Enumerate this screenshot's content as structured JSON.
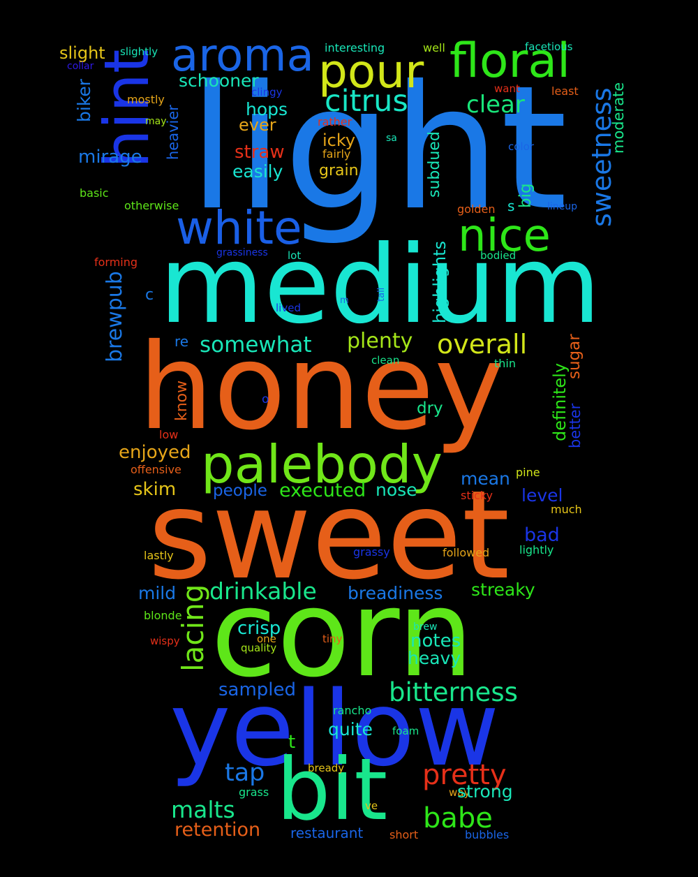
{
  "words": [
    {
      "text": "light",
      "color": "#1a78e6",
      "vertical": false
    },
    {
      "text": "medium",
      "color": "#19e6d2",
      "vertical": false
    },
    {
      "text": "honey",
      "color": "#e65f19",
      "vertical": false
    },
    {
      "text": "sweet",
      "color": "#e65f19",
      "vertical": false
    },
    {
      "text": "corn",
      "color": "#5ee619",
      "vertical": false
    },
    {
      "text": "yellow",
      "color": "#1a35e6",
      "vertical": false
    },
    {
      "text": "bit",
      "color": "#19e68c",
      "vertical": false
    },
    {
      "text": "palebody",
      "color": "#70e619",
      "vertical": false
    },
    {
      "text": "hint",
      "color": "#1a35e6",
      "vertical": true
    },
    {
      "text": "aroma",
      "color": "#1a65e6",
      "vertical": false
    },
    {
      "text": "pour",
      "color": "#d2e619",
      "vertical": false
    },
    {
      "text": "floral",
      "color": "#2ee619",
      "vertical": false
    },
    {
      "text": "white",
      "color": "#1a5fe6",
      "vertical": false
    },
    {
      "text": "nice",
      "color": "#2ee619",
      "vertical": false
    },
    {
      "text": "citrus",
      "color": "#19e6c5",
      "vertical": false
    },
    {
      "text": "clear",
      "color": "#19e67a",
      "vertical": false
    },
    {
      "text": "sweetness",
      "color": "#1a78e6",
      "vertical": true
    },
    {
      "text": "moderate",
      "color": "#19e68c",
      "vertical": true
    },
    {
      "text": "slight",
      "color": "#e6c519",
      "vertical": false
    },
    {
      "text": "slightly",
      "color": "#19e6b8",
      "vertical": false
    },
    {
      "text": "collar",
      "color": "#2e19e6",
      "vertical": false
    },
    {
      "text": "interesting",
      "color": "#19e6b8",
      "vertical": false
    },
    {
      "text": "well",
      "color": "#a5e619",
      "vertical": false
    },
    {
      "text": "facetious",
      "color": "#19e6b8",
      "vertical": false
    },
    {
      "text": "schooner",
      "color": "#19e6b8",
      "vertical": false
    },
    {
      "text": "clingy",
      "color": "#1a35e6",
      "vertical": false
    },
    {
      "text": "want",
      "color": "#e63019",
      "vertical": false
    },
    {
      "text": "least",
      "color": "#e65f19",
      "vertical": false
    },
    {
      "text": "biker",
      "color": "#1a78e6",
      "vertical": true
    },
    {
      "text": "mostly",
      "color": "#e6a519",
      "vertical": false
    },
    {
      "text": "heavier",
      "color": "#1a65e6",
      "vertical": true
    },
    {
      "text": "hops",
      "color": "#19e6d2",
      "vertical": false
    },
    {
      "text": "ever",
      "color": "#e6a519",
      "vertical": false
    },
    {
      "text": "rather",
      "color": "#e63019",
      "vertical": false
    },
    {
      "text": "may",
      "color": "#a5e619",
      "vertical": false
    },
    {
      "text": "icky",
      "color": "#e6a519",
      "vertical": false
    },
    {
      "text": "sa",
      "color": "#19e6b8",
      "vertical": false
    },
    {
      "text": "color",
      "color": "#1a65e6",
      "vertical": false
    },
    {
      "text": "mirage",
      "color": "#1a78e6",
      "vertical": false
    },
    {
      "text": "straw",
      "color": "#e63019",
      "vertical": false
    },
    {
      "text": "fairly",
      "color": "#e6a519",
      "vertical": false
    },
    {
      "text": "subdued",
      "color": "#19e6b8",
      "vertical": true
    },
    {
      "text": "easily",
      "color": "#19e6d2",
      "vertical": false
    },
    {
      "text": "grain",
      "color": "#e6c519",
      "vertical": false
    },
    {
      "text": "basic",
      "color": "#5ee619",
      "vertical": false
    },
    {
      "text": "otherwise",
      "color": "#5ee619",
      "vertical": false
    },
    {
      "text": "big",
      "color": "#19e68c",
      "vertical": true
    },
    {
      "text": "golden",
      "color": "#e65f19",
      "vertical": false
    },
    {
      "text": "s",
      "color": "#19e6d2",
      "vertical": false
    },
    {
      "text": "lineup",
      "color": "#1a65e6",
      "vertical": false
    },
    {
      "text": "grassiness",
      "color": "#1a35e6",
      "vertical": false
    },
    {
      "text": "lot",
      "color": "#19e6b8",
      "vertical": false
    },
    {
      "text": "bodied",
      "color": "#19e68c",
      "vertical": false
    },
    {
      "text": "forming",
      "color": "#e63019",
      "vertical": false
    },
    {
      "text": "brewpub",
      "color": "#1a78e6",
      "vertical": true
    },
    {
      "text": "highlights",
      "color": "#19e6d2",
      "vertical": true
    },
    {
      "text": "c",
      "color": "#1a78e6",
      "vertical": false
    },
    {
      "text": "lived",
      "color": "#1a35e6",
      "vertical": false
    },
    {
      "text": "m",
      "color": "#1a65e6",
      "vertical": false
    },
    {
      "text": "tall",
      "color": "#1a65e6",
      "vertical": true
    },
    {
      "text": "re",
      "color": "#1a78e6",
      "vertical": false
    },
    {
      "text": "somewhat",
      "color": "#19e6b8",
      "vertical": false
    },
    {
      "text": "plenty",
      "color": "#a5e619",
      "vertical": false
    },
    {
      "text": "overall",
      "color": "#d2e619",
      "vertical": false
    },
    {
      "text": "clean",
      "color": "#19e68c",
      "vertical": false
    },
    {
      "text": "thin",
      "color": "#19e68c",
      "vertical": false
    },
    {
      "text": "sugar",
      "color": "#e65f19",
      "vertical": true
    },
    {
      "text": "definitely",
      "color": "#2ee619",
      "vertical": true
    },
    {
      "text": "better",
      "color": "#1a35e6",
      "vertical": true
    },
    {
      "text": "know",
      "color": "#e65f19",
      "vertical": true
    },
    {
      "text": "o",
      "color": "#1a35e6",
      "vertical": false
    },
    {
      "text": "dry",
      "color": "#19e68c",
      "vertical": false
    },
    {
      "text": "low",
      "color": "#e63019",
      "vertical": false
    },
    {
      "text": "enjoyed",
      "color": "#e6a519",
      "vertical": false
    },
    {
      "text": "offensive",
      "color": "#e65f19",
      "vertical": false
    },
    {
      "text": "pine",
      "color": "#d2e619",
      "vertical": false
    },
    {
      "text": "mean",
      "color": "#1a78e6",
      "vertical": false
    },
    {
      "text": "skim",
      "color": "#e6c519",
      "vertical": false
    },
    {
      "text": "people",
      "color": "#1a65e6",
      "vertical": false
    },
    {
      "text": "executed",
      "color": "#2ee619",
      "vertical": false
    },
    {
      "text": "nose",
      "color": "#19e6b8",
      "vertical": false
    },
    {
      "text": "sticky",
      "color": "#e63019",
      "vertical": false
    },
    {
      "text": "level",
      "color": "#1a35e6",
      "vertical": false
    },
    {
      "text": "much",
      "color": "#e6c519",
      "vertical": false
    },
    {
      "text": "bad",
      "color": "#1a35e6",
      "vertical": false
    },
    {
      "text": "lastly",
      "color": "#e6c519",
      "vertical": false
    },
    {
      "text": "grassy",
      "color": "#1a35e6",
      "vertical": false
    },
    {
      "text": "followed",
      "color": "#e6a519",
      "vertical": false
    },
    {
      "text": "lightly",
      "color": "#19e68c",
      "vertical": false
    },
    {
      "text": "mild",
      "color": "#1a78e6",
      "vertical": false
    },
    {
      "text": "lacing",
      "color": "#70e619",
      "vertical": true
    },
    {
      "text": "drinkable",
      "color": "#19e68c",
      "vertical": false
    },
    {
      "text": "breadiness",
      "color": "#1a78e6",
      "vertical": false
    },
    {
      "text": "streaky",
      "color": "#2ee619",
      "vertical": false
    },
    {
      "text": "blonde",
      "color": "#5ee619",
      "vertical": false
    },
    {
      "text": "crisp",
      "color": "#19e6d2",
      "vertical": false
    },
    {
      "text": "notes",
      "color": "#19e6b8",
      "vertical": false
    },
    {
      "text": "brew",
      "color": "#19e6b8",
      "vertical": false
    },
    {
      "text": "wispy",
      "color": "#e63019",
      "vertical": false
    },
    {
      "text": "one",
      "color": "#e6a519",
      "vertical": false
    },
    {
      "text": "tiny",
      "color": "#e65f19",
      "vertical": false
    },
    {
      "text": "quality",
      "color": "#a5e619",
      "vertical": false
    },
    {
      "text": "heavy",
      "color": "#19e6b8",
      "vertical": false
    },
    {
      "text": "sampled",
      "color": "#1a65e6",
      "vertical": false
    },
    {
      "text": "bitterness",
      "color": "#19e68c",
      "vertical": false
    },
    {
      "text": "rancho",
      "color": "#19e68c",
      "vertical": false
    },
    {
      "text": "t",
      "color": "#2ee619",
      "vertical": false
    },
    {
      "text": "quite",
      "color": "#19e6d2",
      "vertical": false
    },
    {
      "text": "foam",
      "color": "#19e68c",
      "vertical": false
    },
    {
      "text": "tap",
      "color": "#1a78e6",
      "vertical": false
    },
    {
      "text": "bready",
      "color": "#e6c519",
      "vertical": false
    },
    {
      "text": "pretty",
      "color": "#e63019",
      "vertical": false
    },
    {
      "text": "way",
      "color": "#e6a519",
      "vertical": false
    },
    {
      "text": "strong",
      "color": "#19e6b8",
      "vertical": false
    },
    {
      "text": "grass",
      "color": "#19e68c",
      "vertical": false
    },
    {
      "text": "malts",
      "color": "#19e68c",
      "vertical": false
    },
    {
      "text": "ve",
      "color": "#e6c519",
      "vertical": false
    },
    {
      "text": "babe",
      "color": "#2ee619",
      "vertical": false
    },
    {
      "text": "retention",
      "color": "#e65f19",
      "vertical": false
    },
    {
      "text": "restaurant",
      "color": "#1a65e6",
      "vertical": false
    },
    {
      "text": "short",
      "color": "#e65f19",
      "vertical": false
    },
    {
      "text": "bubbles",
      "color": "#1a65e6",
      "vertical": false
    }
  ]
}
